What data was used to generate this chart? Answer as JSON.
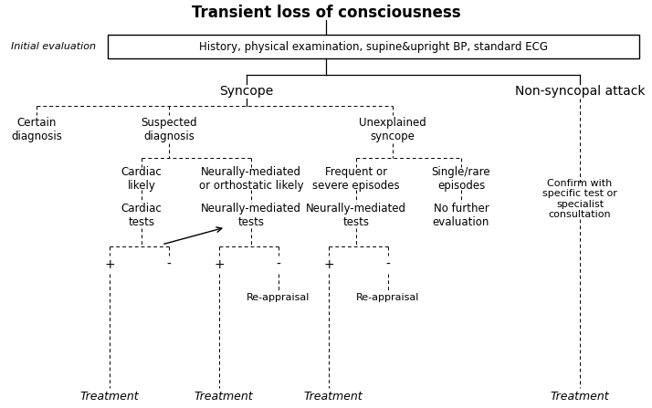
{
  "title": "Transient loss of consciousness",
  "initial_eval_label": "Initial evaluation",
  "initial_eval_box": "History, physical examination, supine&upright BP, standard ECG",
  "syncope_label": "Syncope",
  "non_syncopal_label": "Non-syncopal attack",
  "certain_diag": "Certain\ndiagnosis",
  "suspected_diag": "Suspected\ndiagnosis",
  "unexplained_syncope": "Unexplained\nsyncope",
  "cardiac_likely": "Cardiac\nlikely",
  "neurally_ortho": "Neurally-mediated\nor orthostatic likely",
  "frequent_severe": "Frequent or\nsevere episodes",
  "single_rare": "Single/rare\nepisodes",
  "confirm_with": "Confirm with\nspecific test or\nspecialist\nconsultation",
  "cardiac_tests": "Cardiac\ntests",
  "neurally_med_tests1": "Neurally-mediated\ntests",
  "neurally_med_tests2": "Neurally-mediated\ntests",
  "no_further": "No further\nevaluation",
  "plus": "+",
  "minus": "-",
  "re_appraisal1": "Re-appraisal",
  "re_appraisal2": "Re-appraisal",
  "treatment": "Treatment",
  "bg_color": "#ffffff",
  "text_color": "#000000"
}
